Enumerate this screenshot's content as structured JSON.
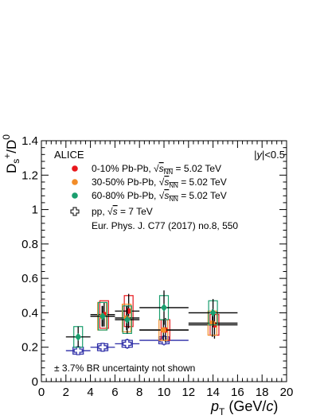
{
  "chart_data": {
    "type": "scatter",
    "experiment": "ALICE",
    "rapidity_label": "|y|<0.5",
    "ylabel": "Dₛ⁺/D⁰",
    "xlabel": "p_T (GeV/c)",
    "xlim": [
      0,
      20
    ],
    "ylim": [
      0,
      1.4
    ],
    "x_ticks": [
      "0",
      "2",
      "4",
      "6",
      "8",
      "10",
      "12",
      "14",
      "16",
      "18",
      "20"
    ],
    "y_ticks": [
      "0",
      "0.2",
      "0.4",
      "0.6",
      "0.8",
      "1",
      "1.2",
      "1.4"
    ],
    "grid": false,
    "legend_position": "top-left",
    "reference": "Eur. Phys. J. C77 (2017) no.8, 550",
    "note": "± 3.7% BR uncertainty not shown",
    "series": [
      {
        "name": "0-10% Pb-Pb, √s_NN = 5.02 TeV",
        "legend_text": "0-10% Pb-Pb,",
        "energy_text": "= 5.02 TeV",
        "color": "#e8161b",
        "marker": "circle",
        "points": [
          {
            "x": 5.0,
            "y": 0.39,
            "x_lo": 4.0,
            "x_hi": 6.0,
            "stat": 0.07,
            "syst": 0.08
          },
          {
            "x": 7.0,
            "y": 0.41,
            "x_lo": 6.0,
            "x_hi": 8.0,
            "stat": 0.1,
            "syst": 0.09
          },
          {
            "x": 10.0,
            "y": 0.3,
            "x_lo": 8.0,
            "x_hi": 12.0,
            "stat": 0.07,
            "syst": 0.06
          },
          {
            "x": 14.0,
            "y": 0.33,
            "x_lo": 12.0,
            "x_hi": 16.0,
            "stat": 0.08,
            "syst": 0.06
          }
        ]
      },
      {
        "name": "30-50% Pb-Pb, √s_NN = 5.02 TeV",
        "legend_text": "30-50% Pb-Pb,",
        "energy_text": "= 5.02 TeV",
        "color": "#f28c28",
        "marker": "circle",
        "points": [
          {
            "x": 5.0,
            "y": 0.38,
            "x_lo": 4.0,
            "x_hi": 6.0,
            "stat": 0.06,
            "syst": 0.08
          },
          {
            "x": 7.0,
            "y": 0.37,
            "x_lo": 6.0,
            "x_hi": 8.0,
            "stat": 0.07,
            "syst": 0.08
          },
          {
            "x": 10.0,
            "y": 0.3,
            "x_lo": 8.0,
            "x_hi": 12.0,
            "stat": 0.06,
            "syst": 0.06
          },
          {
            "x": 14.0,
            "y": 0.34,
            "x_lo": 12.0,
            "x_hi": 16.0,
            "stat": 0.08,
            "syst": 0.07
          }
        ]
      },
      {
        "name": "60-80% Pb-Pb, √s_NN = 5.02 TeV",
        "legend_text": "60-80% Pb-Pb,",
        "energy_text": "= 5.02 TeV",
        "color": "#1a9e6e",
        "marker": "diamond",
        "points": [
          {
            "x": 3.0,
            "y": 0.26,
            "x_lo": 2.0,
            "x_hi": 4.0,
            "stat": 0.06,
            "syst": 0.06
          },
          {
            "x": 5.0,
            "y": 0.38,
            "x_lo": 4.0,
            "x_hi": 6.0,
            "stat": 0.06,
            "syst": 0.08
          },
          {
            "x": 7.0,
            "y": 0.36,
            "x_lo": 6.0,
            "x_hi": 8.0,
            "stat": 0.08,
            "syst": 0.08
          },
          {
            "x": 10.0,
            "y": 0.43,
            "x_lo": 8.0,
            "x_hi": 12.0,
            "stat": 0.1,
            "syst": 0.07
          },
          {
            "x": 14.0,
            "y": 0.4,
            "x_lo": 12.0,
            "x_hi": 16.0,
            "stat": 0.08,
            "syst": 0.07
          }
        ]
      },
      {
        "name": "pp, √s = 7 TeV",
        "legend_text": "pp,",
        "energy_text": "= 7 TeV",
        "color": "#2b2ba6",
        "marker": "open-cross",
        "points": [
          {
            "x": 3.0,
            "y": 0.18,
            "x_lo": 2.0,
            "x_hi": 4.0,
            "stat": 0.02,
            "syst": 0.02
          },
          {
            "x": 5.0,
            "y": 0.2,
            "x_lo": 4.0,
            "x_hi": 6.0,
            "stat": 0.02,
            "syst": 0.02
          },
          {
            "x": 7.0,
            "y": 0.22,
            "x_lo": 6.0,
            "x_hi": 8.0,
            "stat": 0.03,
            "syst": 0.02
          },
          {
            "x": 10.0,
            "y": 0.24,
            "x_lo": 8.0,
            "x_hi": 12.0,
            "stat": 0.03,
            "syst": 0.02
          }
        ]
      }
    ]
  }
}
